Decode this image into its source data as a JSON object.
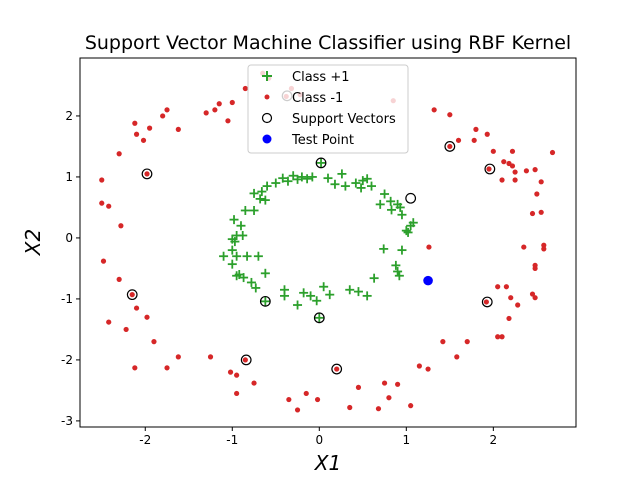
{
  "chart_data": {
    "type": "scatter",
    "title": "Support Vector Machine Classifier using RBF Kernel",
    "xlabel": "X1",
    "ylabel": "X2",
    "xlim": [
      -2.75,
      2.95
    ],
    "ylim": [
      -3.1,
      2.95
    ],
    "xticks": [
      -2,
      -1,
      0,
      1,
      2
    ],
    "yticks": [
      -3,
      -2,
      -1,
      0,
      1,
      2
    ],
    "legend_position": "top-center",
    "series": [
      {
        "name": "Class +1",
        "marker": "plus",
        "color": "#2ca02c",
        "points": [
          [
            0.02,
            1.23
          ],
          [
            -0.08,
            1.0
          ],
          [
            -0.14,
            0.97
          ],
          [
            -0.2,
            1.0
          ],
          [
            -0.25,
            0.96
          ],
          [
            -0.3,
            1.02
          ],
          [
            -0.36,
            0.93
          ],
          [
            -0.42,
            0.98
          ],
          [
            -0.5,
            0.9
          ],
          [
            -0.6,
            0.85
          ],
          [
            -0.66,
            0.76
          ],
          [
            -0.75,
            0.73
          ],
          [
            -0.68,
            0.64
          ],
          [
            -0.62,
            0.62
          ],
          [
            -0.98,
            0.3
          ],
          [
            -0.95,
            0.04
          ],
          [
            -0.97,
            -0.06
          ],
          [
            -1.0,
            -0.02
          ],
          [
            -0.88,
            0.04
          ],
          [
            -1.1,
            -0.3
          ],
          [
            -0.95,
            -0.3
          ],
          [
            -0.83,
            -0.3
          ],
          [
            -1.0,
            -0.43
          ],
          [
            -0.95,
            -0.62
          ],
          [
            -0.87,
            -0.65
          ],
          [
            -0.78,
            -0.73
          ],
          [
            -0.73,
            -0.82
          ],
          [
            -0.62,
            -0.58
          ],
          [
            -0.62,
            -1.04
          ],
          [
            -0.4,
            -0.95
          ],
          [
            -0.25,
            -1.1
          ],
          [
            -0.18,
            -0.9
          ],
          [
            -0.1,
            -0.95
          ],
          [
            -0.03,
            -1.03
          ],
          [
            0.05,
            -0.8
          ],
          [
            0.12,
            -0.93
          ],
          [
            0.0,
            -1.31
          ],
          [
            0.35,
            -0.85
          ],
          [
            0.45,
            -0.88
          ],
          [
            0.55,
            -0.95
          ],
          [
            0.88,
            -0.45
          ],
          [
            0.9,
            -0.55
          ],
          [
            0.92,
            -0.62
          ],
          [
            0.95,
            -0.2
          ],
          [
            1.0,
            0.12
          ],
          [
            1.05,
            0.2
          ],
          [
            1.08,
            0.25
          ],
          [
            0.95,
            0.38
          ],
          [
            0.9,
            0.55
          ],
          [
            0.82,
            0.6
          ],
          [
            0.75,
            0.72
          ],
          [
            0.7,
            0.55
          ],
          [
            0.6,
            0.85
          ],
          [
            0.5,
            0.94
          ],
          [
            0.42,
            0.9
          ],
          [
            0.3,
            0.85
          ],
          [
            0.26,
            1.05
          ],
          [
            0.18,
            0.88
          ],
          [
            0.1,
            0.98
          ],
          [
            -1.0,
            -0.2
          ],
          [
            -0.9,
            0.2
          ],
          [
            -0.4,
            -0.85
          ],
          [
            0.83,
            0.46
          ],
          [
            -0.7,
            -0.3
          ],
          [
            -0.92,
            -0.6
          ],
          [
            0.93,
            0.5
          ],
          [
            0.74,
            -0.18
          ],
          [
            0.63,
            -0.66
          ],
          [
            1.02,
            0.09
          ],
          [
            0.48,
            0.82
          ],
          [
            0.55,
            0.97
          ],
          [
            -0.75,
            0.45
          ],
          [
            -0.85,
            0.45
          ]
        ]
      },
      {
        "name": "Class -1",
        "marker": "dot",
        "color": "#d62728",
        "points": [
          [
            -0.65,
            2.7
          ],
          [
            -0.32,
            2.45
          ],
          [
            -0.38,
            2.32
          ],
          [
            -0.22,
            2.35
          ],
          [
            -0.85,
            2.45
          ],
          [
            -1.0,
            2.22
          ],
          [
            -1.15,
            2.2
          ],
          [
            -1.2,
            2.1
          ],
          [
            -1.3,
            2.05
          ],
          [
            0.85,
            2.25
          ],
          [
            1.32,
            2.1
          ],
          [
            1.5,
            2.02
          ],
          [
            1.78,
            1.6
          ],
          [
            1.8,
            1.78
          ],
          [
            -1.75,
            2.1
          ],
          [
            -1.8,
            2.0
          ],
          [
            -1.95,
            1.8
          ],
          [
            -2.12,
            1.88
          ],
          [
            -2.1,
            1.7
          ],
          [
            -2.3,
            1.38
          ],
          [
            -2.02,
            1.6
          ],
          [
            -1.98,
            1.05
          ],
          [
            -2.5,
            0.95
          ],
          [
            -2.5,
            0.57
          ],
          [
            -2.42,
            0.52
          ],
          [
            -2.28,
            0.2
          ],
          [
            -2.48,
            -0.38
          ],
          [
            -2.3,
            -0.68
          ],
          [
            -2.15,
            -0.93
          ],
          [
            -2.1,
            -1.15
          ],
          [
            -1.98,
            -1.3
          ],
          [
            -2.42,
            -1.38
          ],
          [
            -2.22,
            -1.5
          ],
          [
            -1.9,
            -1.7
          ],
          [
            -2.12,
            -2.13
          ],
          [
            -1.62,
            -1.95
          ],
          [
            -1.75,
            -2.13
          ],
          [
            -1.25,
            -1.95
          ],
          [
            -1.02,
            -2.2
          ],
          [
            -0.95,
            -2.25
          ],
          [
            -0.95,
            -2.55
          ],
          [
            -0.85,
            -2.0
          ],
          [
            -0.75,
            -2.38
          ],
          [
            -0.35,
            -2.65
          ],
          [
            -0.25,
            -2.82
          ],
          [
            -0.15,
            -2.55
          ],
          [
            -0.02,
            -2.65
          ],
          [
            0.2,
            -2.15
          ],
          [
            0.35,
            -2.78
          ],
          [
            0.45,
            -2.45
          ],
          [
            0.68,
            -2.8
          ],
          [
            0.75,
            -2.38
          ],
          [
            0.8,
            -2.62
          ],
          [
            0.9,
            -2.4
          ],
          [
            1.05,
            -2.75
          ],
          [
            1.15,
            -2.1
          ],
          [
            1.25,
            -2.15
          ],
          [
            1.42,
            -1.7
          ],
          [
            1.58,
            -1.95
          ],
          [
            1.7,
            -1.7
          ],
          [
            1.92,
            -1.05
          ],
          [
            2.05,
            -0.8
          ],
          [
            2.05,
            -1.62
          ],
          [
            2.1,
            -1.62
          ],
          [
            2.15,
            -0.8
          ],
          [
            2.18,
            -1.32
          ],
          [
            2.2,
            -0.98
          ],
          [
            2.28,
            -1.1
          ],
          [
            2.45,
            -0.92
          ],
          [
            2.48,
            -0.98
          ],
          [
            2.48,
            -0.45
          ],
          [
            2.48,
            -0.5
          ],
          [
            2.58,
            -0.12
          ],
          [
            2.58,
            -0.18
          ],
          [
            2.35,
            -0.15
          ],
          [
            2.55,
            0.42
          ],
          [
            2.5,
            0.72
          ],
          [
            2.45,
            0.4
          ],
          [
            2.55,
            0.92
          ],
          [
            2.68,
            1.4
          ],
          [
            2.48,
            1.12
          ],
          [
            2.18,
            1.22
          ],
          [
            2.22,
            1.18
          ],
          [
            2.25,
            1.08
          ],
          [
            2.38,
            1.1
          ],
          [
            2.25,
            0.95
          ],
          [
            2.1,
            0.95
          ],
          [
            2.0,
            1.42
          ],
          [
            1.95,
            1.13
          ],
          [
            2.22,
            1.42
          ],
          [
            2.12,
            1.25
          ],
          [
            1.5,
            1.5
          ],
          [
            1.6,
            1.6
          ],
          [
            1.93,
            1.7
          ],
          [
            -1.62,
            1.78
          ],
          [
            -0.58,
            2.62
          ],
          [
            -1.05,
            1.92
          ],
          [
            1.26,
            -0.15
          ]
        ]
      }
    ],
    "support_vectors": {
      "name": "Support Vectors",
      "marker": "open-circle",
      "color": "#000000",
      "points": [
        [
          0.02,
          1.23
        ],
        [
          1.05,
          0.65
        ],
        [
          -1.98,
          1.05
        ],
        [
          -0.37,
          2.33
        ],
        [
          1.5,
          1.5
        ],
        [
          1.96,
          1.13
        ],
        [
          -2.15,
          -0.93
        ],
        [
          -0.84,
          -2.0
        ],
        [
          -0.62,
          -1.04
        ],
        [
          0.0,
          -1.31
        ],
        [
          0.2,
          -2.15
        ],
        [
          1.93,
          -1.05
        ]
      ]
    },
    "test_point": {
      "name": "Test Point",
      "marker": "filled-circle",
      "color": "#0000ff",
      "points": [
        [
          1.25,
          -0.7
        ]
      ]
    }
  }
}
